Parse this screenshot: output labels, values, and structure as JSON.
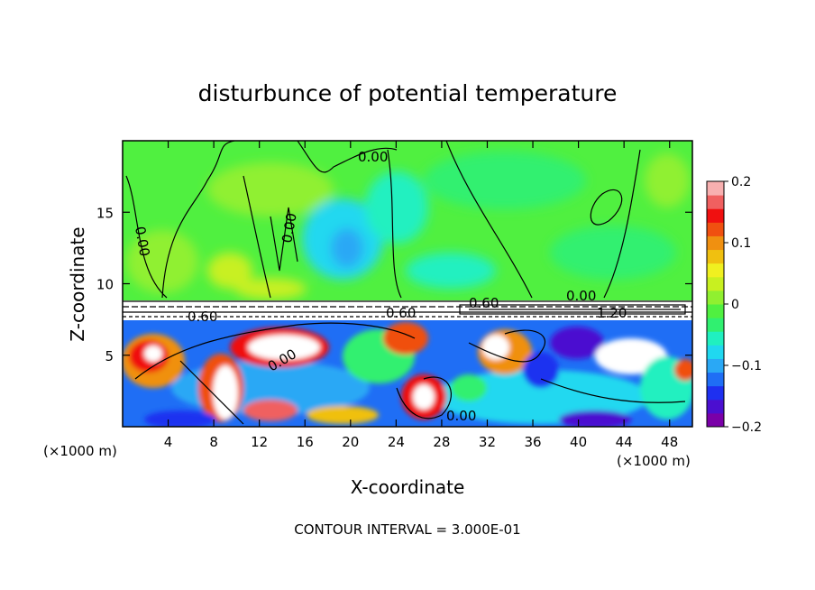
{
  "chart_data": {
    "type": "heatmap",
    "title": "disturbunce of potential temperature",
    "xlabel": "X-coordinate",
    "ylabel": "Z-coordinate",
    "x_unit_label": "(×1000 m)",
    "y_unit_label": "(×1000 m)",
    "xlim": [
      0,
      50
    ],
    "ylim": [
      0,
      20
    ],
    "x_ticks": [
      "4",
      "8",
      "12",
      "16",
      "20",
      "24",
      "28",
      "32",
      "36",
      "40",
      "44",
      "48"
    ],
    "y_ticks": [
      "5",
      "10",
      "15"
    ],
    "colorbar": {
      "range": [
        -0.2,
        0.2
      ],
      "tick_labels": [
        "0.2",
        "0.1",
        "0",
        "−0.1",
        "−0.2"
      ],
      "colors": [
        "#7a00a8",
        "#4b0fd0",
        "#1e30f0",
        "#1f6ef5",
        "#2aa8f5",
        "#20d8f0",
        "#20f0c0",
        "#30f070",
        "#50f040",
        "#90f030",
        "#c8f020",
        "#f0f020",
        "#f0c010",
        "#f09010",
        "#f05010",
        "#f01010",
        "#f06060",
        "#f8b0b0"
      ]
    },
    "contour_labels": [
      "0.00",
      "0.00",
      "0.00",
      "0.00",
      "0.00",
      "0.00",
      "0.60",
      "0.60",
      "0.60",
      "1.20"
    ],
    "footnote": "CONTOUR INTERVAL = 3.000E-01"
  }
}
